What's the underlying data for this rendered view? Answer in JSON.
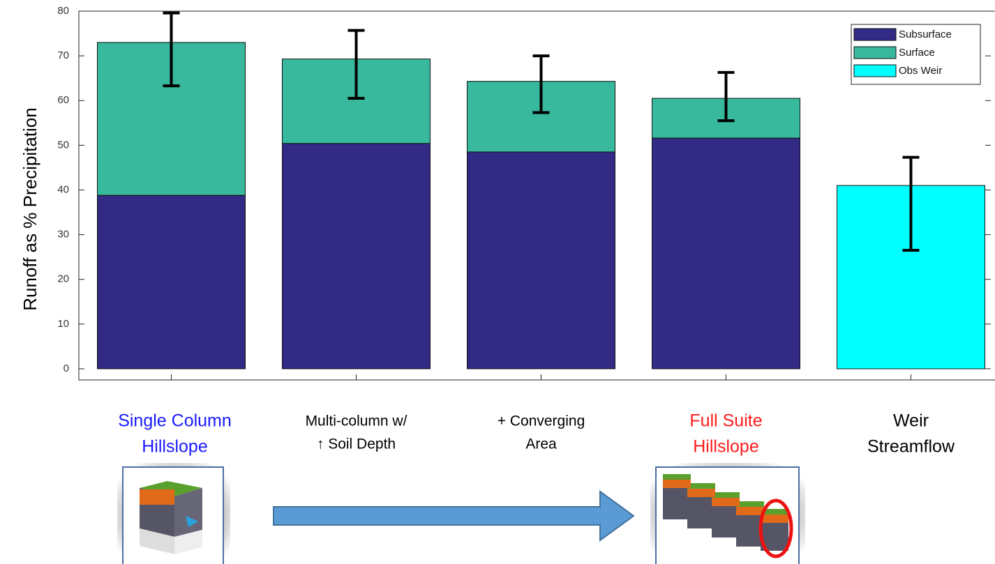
{
  "chart_data": {
    "type": "bar",
    "stacked": true,
    "y_label": "Runoff as % Precipitation",
    "categories": [
      [
        "Single Column",
        "Hillslope"
      ],
      [
        "Multi-column w/",
        "↑ Soil Depth"
      ],
      [
        "+ Converging",
        "Area"
      ],
      [
        "Full Suite",
        "Hillslope"
      ],
      [
        "Weir",
        "Streamflow"
      ]
    ],
    "category_colors": [
      "#1a1aff",
      "#000000",
      "#000000",
      "#ff1a1a",
      "#000000"
    ],
    "series": [
      {
        "name": "Subsurface",
        "color": "#332a85",
        "values": [
          38.8,
          50.4,
          48.5,
          51.6,
          null
        ]
      },
      {
        "name": "Surface",
        "color": "#38b89c",
        "values": [
          34.2,
          18.9,
          15.8,
          8.9,
          null
        ]
      },
      {
        "name": "Obs Weir",
        "color": "#00ffff",
        "values": [
          null,
          null,
          null,
          null,
          41
        ]
      }
    ],
    "error_low": [
      63.3,
      60.5,
      57.3,
      55.5,
      26.5
    ],
    "error_high": [
      79.6,
      75.7,
      70,
      66.3,
      47.3
    ],
    "xlim": [
      0.5,
      5.5
    ],
    "ylim": [
      -2.5,
      80
    ],
    "yticks": [
      0,
      10,
      20,
      30,
      40,
      50,
      60,
      70,
      80
    ],
    "grid": false,
    "legend": "top-right"
  }
}
